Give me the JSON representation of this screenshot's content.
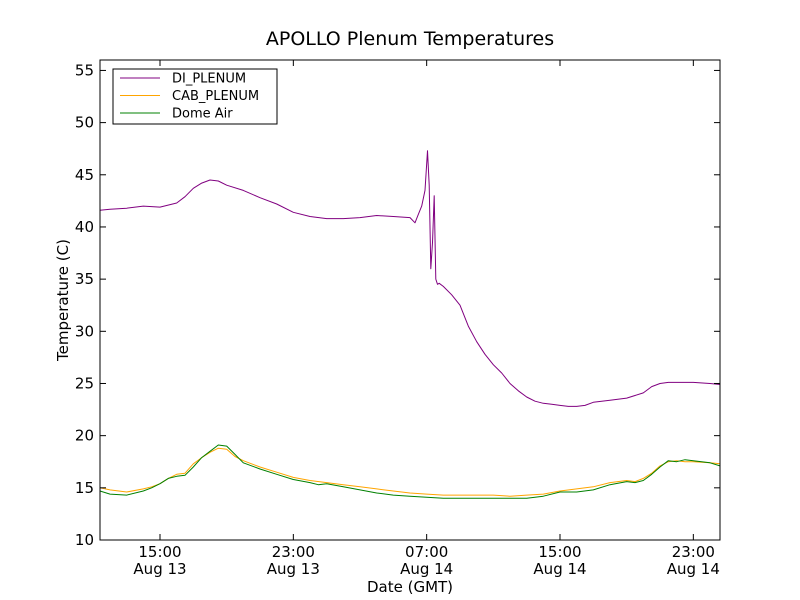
{
  "chart_data": {
    "type": "line",
    "title": "APOLLO Plenum Temperatures",
    "xlabel": "Date (GMT)",
    "ylabel": "Temperature (C)",
    "xlim": [
      11.4,
      48.6
    ],
    "ylim": [
      10,
      56
    ],
    "yticks": [
      10,
      15,
      20,
      25,
      30,
      35,
      40,
      45,
      50,
      55
    ],
    "xticks": [
      {
        "x": 15,
        "time": "15:00",
        "date": "Aug 13"
      },
      {
        "x": 23,
        "time": "23:00",
        "date": "Aug 13"
      },
      {
        "x": 31,
        "time": "07:00",
        "date": "Aug 14"
      },
      {
        "x": 39,
        "time": "15:00",
        "date": "Aug 14"
      },
      {
        "x": 47,
        "time": "23:00",
        "date": "Aug 14"
      }
    ],
    "legend_location": "top-left",
    "series": [
      {
        "name": "DI_PLENUM",
        "color": "#800080",
        "x": [
          11.4,
          12.0,
          13.0,
          14.0,
          15.0,
          16.0,
          16.5,
          17.0,
          17.5,
          18.0,
          18.5,
          19.0,
          20.0,
          21.0,
          22.0,
          23.0,
          24.0,
          25.0,
          26.0,
          27.0,
          28.0,
          29.0,
          30.0,
          30.3,
          30.5,
          30.7,
          30.9,
          31.05,
          31.15,
          31.25,
          31.35,
          31.45,
          31.55,
          31.65,
          31.75,
          32.0,
          32.5,
          33.0,
          33.5,
          34.0,
          34.5,
          35.0,
          35.5,
          36.0,
          36.5,
          37.0,
          37.5,
          38.0,
          38.5,
          39.0,
          39.5,
          40.0,
          40.5,
          41.0,
          42.0,
          43.0,
          44.0,
          44.5,
          45.0,
          45.5,
          46.0,
          46.5,
          47.0,
          48.0,
          48.6
        ],
        "values": [
          41.6,
          41.7,
          41.8,
          42.0,
          41.9,
          42.3,
          42.9,
          43.7,
          44.2,
          44.5,
          44.4,
          44.0,
          43.5,
          42.8,
          42.2,
          41.4,
          41.0,
          40.8,
          40.8,
          40.9,
          41.1,
          41.0,
          40.9,
          40.4,
          41.2,
          42.0,
          43.5,
          47.3,
          44.0,
          36.0,
          38.5,
          43.0,
          35.0,
          34.5,
          34.6,
          34.3,
          33.5,
          32.5,
          30.5,
          29.0,
          27.8,
          26.8,
          26.0,
          25.0,
          24.3,
          23.7,
          23.3,
          23.1,
          23.0,
          22.9,
          22.8,
          22.8,
          22.9,
          23.2,
          23.4,
          23.6,
          24.1,
          24.7,
          25.0,
          25.1,
          25.1,
          25.1,
          25.1,
          25.0,
          24.9
        ]
      },
      {
        "name": "CAB_PLENUM",
        "color": "#ffa500",
        "x": [
          11.4,
          12.0,
          13.0,
          14.0,
          14.5,
          15.0,
          15.5,
          16.0,
          16.5,
          17.0,
          17.5,
          18.0,
          18.5,
          19.0,
          19.5,
          20.0,
          21.0,
          22.0,
          23.0,
          24.0,
          25.0,
          26.0,
          27.0,
          28.0,
          29.0,
          30.0,
          31.0,
          32.0,
          33.0,
          34.0,
          35.0,
          36.0,
          37.0,
          38.0,
          39.0,
          40.0,
          41.0,
          42.0,
          43.0,
          43.5,
          44.0,
          44.5,
          45.0,
          45.5,
          46.0,
          46.5,
          47.0,
          48.0,
          48.6
        ],
        "values": [
          15.0,
          14.8,
          14.6,
          14.9,
          15.1,
          15.4,
          15.9,
          16.3,
          16.4,
          17.3,
          17.9,
          18.4,
          18.8,
          18.7,
          18.0,
          17.6,
          17.0,
          16.5,
          16.0,
          15.7,
          15.5,
          15.3,
          15.1,
          14.9,
          14.7,
          14.5,
          14.4,
          14.3,
          14.3,
          14.3,
          14.3,
          14.2,
          14.3,
          14.4,
          14.7,
          14.9,
          15.1,
          15.5,
          15.7,
          15.6,
          15.9,
          16.4,
          17.1,
          17.5,
          17.6,
          17.5,
          17.5,
          17.4,
          17.3
        ]
      },
      {
        "name": "Dome Air",
        "color": "#008000",
        "x": [
          11.4,
          12.0,
          13.0,
          14.0,
          14.5,
          15.0,
          15.5,
          16.0,
          16.5,
          17.0,
          17.5,
          18.0,
          18.5,
          19.0,
          19.5,
          20.0,
          21.0,
          22.0,
          23.0,
          24.0,
          24.5,
          25.0,
          26.0,
          27.0,
          28.0,
          29.0,
          30.0,
          31.0,
          32.0,
          33.0,
          34.0,
          35.0,
          36.0,
          37.0,
          38.0,
          39.0,
          40.0,
          41.0,
          42.0,
          43.0,
          43.5,
          44.0,
          44.5,
          45.0,
          45.5,
          46.0,
          46.5,
          47.0,
          48.0,
          48.6
        ],
        "values": [
          14.7,
          14.4,
          14.3,
          14.7,
          15.0,
          15.4,
          15.9,
          16.1,
          16.2,
          17.0,
          17.9,
          18.5,
          19.1,
          19.0,
          18.2,
          17.4,
          16.8,
          16.3,
          15.8,
          15.5,
          15.3,
          15.4,
          15.1,
          14.8,
          14.5,
          14.3,
          14.2,
          14.1,
          14.0,
          14.0,
          14.0,
          14.0,
          14.0,
          14.0,
          14.2,
          14.6,
          14.6,
          14.8,
          15.3,
          15.6,
          15.5,
          15.7,
          16.3,
          17.0,
          17.6,
          17.5,
          17.7,
          17.6,
          17.4,
          17.1
        ]
      }
    ]
  }
}
